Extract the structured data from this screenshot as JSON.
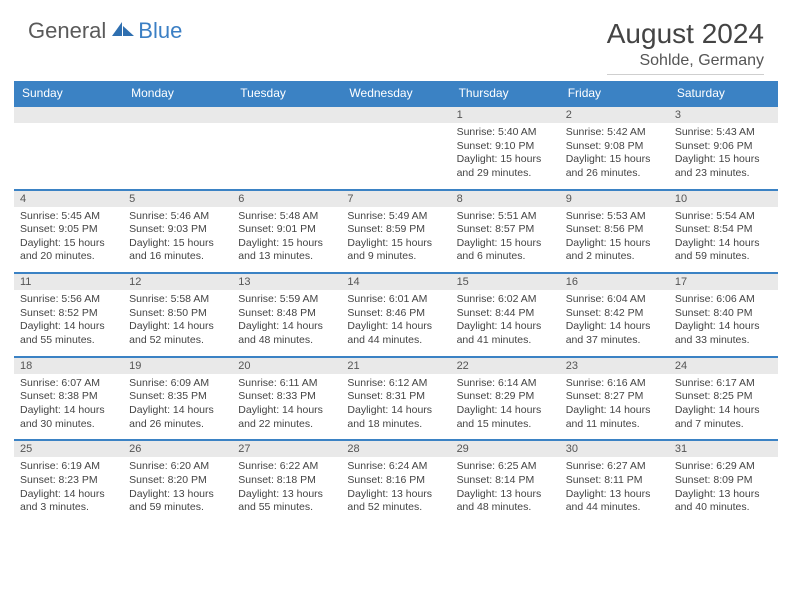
{
  "logo": {
    "general": "General",
    "blue": "Blue"
  },
  "title": "August 2024",
  "location": "Sohlde, Germany",
  "accent_color": "#3b82c4",
  "daynum_bg": "#e9e9e9",
  "weekdays": [
    "Sunday",
    "Monday",
    "Tuesday",
    "Wednesday",
    "Thursday",
    "Friday",
    "Saturday"
  ],
  "weeks": [
    [
      null,
      null,
      null,
      null,
      {
        "n": "1",
        "sr": "Sunrise: 5:40 AM",
        "ss": "Sunset: 9:10 PM",
        "d1": "Daylight: 15 hours",
        "d2": "and 29 minutes."
      },
      {
        "n": "2",
        "sr": "Sunrise: 5:42 AM",
        "ss": "Sunset: 9:08 PM",
        "d1": "Daylight: 15 hours",
        "d2": "and 26 minutes."
      },
      {
        "n": "3",
        "sr": "Sunrise: 5:43 AM",
        "ss": "Sunset: 9:06 PM",
        "d1": "Daylight: 15 hours",
        "d2": "and 23 minutes."
      }
    ],
    [
      {
        "n": "4",
        "sr": "Sunrise: 5:45 AM",
        "ss": "Sunset: 9:05 PM",
        "d1": "Daylight: 15 hours",
        "d2": "and 20 minutes."
      },
      {
        "n": "5",
        "sr": "Sunrise: 5:46 AM",
        "ss": "Sunset: 9:03 PM",
        "d1": "Daylight: 15 hours",
        "d2": "and 16 minutes."
      },
      {
        "n": "6",
        "sr": "Sunrise: 5:48 AM",
        "ss": "Sunset: 9:01 PM",
        "d1": "Daylight: 15 hours",
        "d2": "and 13 minutes."
      },
      {
        "n": "7",
        "sr": "Sunrise: 5:49 AM",
        "ss": "Sunset: 8:59 PM",
        "d1": "Daylight: 15 hours",
        "d2": "and 9 minutes."
      },
      {
        "n": "8",
        "sr": "Sunrise: 5:51 AM",
        "ss": "Sunset: 8:57 PM",
        "d1": "Daylight: 15 hours",
        "d2": "and 6 minutes."
      },
      {
        "n": "9",
        "sr": "Sunrise: 5:53 AM",
        "ss": "Sunset: 8:56 PM",
        "d1": "Daylight: 15 hours",
        "d2": "and 2 minutes."
      },
      {
        "n": "10",
        "sr": "Sunrise: 5:54 AM",
        "ss": "Sunset: 8:54 PM",
        "d1": "Daylight: 14 hours",
        "d2": "and 59 minutes."
      }
    ],
    [
      {
        "n": "11",
        "sr": "Sunrise: 5:56 AM",
        "ss": "Sunset: 8:52 PM",
        "d1": "Daylight: 14 hours",
        "d2": "and 55 minutes."
      },
      {
        "n": "12",
        "sr": "Sunrise: 5:58 AM",
        "ss": "Sunset: 8:50 PM",
        "d1": "Daylight: 14 hours",
        "d2": "and 52 minutes."
      },
      {
        "n": "13",
        "sr": "Sunrise: 5:59 AM",
        "ss": "Sunset: 8:48 PM",
        "d1": "Daylight: 14 hours",
        "d2": "and 48 minutes."
      },
      {
        "n": "14",
        "sr": "Sunrise: 6:01 AM",
        "ss": "Sunset: 8:46 PM",
        "d1": "Daylight: 14 hours",
        "d2": "and 44 minutes."
      },
      {
        "n": "15",
        "sr": "Sunrise: 6:02 AM",
        "ss": "Sunset: 8:44 PM",
        "d1": "Daylight: 14 hours",
        "d2": "and 41 minutes."
      },
      {
        "n": "16",
        "sr": "Sunrise: 6:04 AM",
        "ss": "Sunset: 8:42 PM",
        "d1": "Daylight: 14 hours",
        "d2": "and 37 minutes."
      },
      {
        "n": "17",
        "sr": "Sunrise: 6:06 AM",
        "ss": "Sunset: 8:40 PM",
        "d1": "Daylight: 14 hours",
        "d2": "and 33 minutes."
      }
    ],
    [
      {
        "n": "18",
        "sr": "Sunrise: 6:07 AM",
        "ss": "Sunset: 8:38 PM",
        "d1": "Daylight: 14 hours",
        "d2": "and 30 minutes."
      },
      {
        "n": "19",
        "sr": "Sunrise: 6:09 AM",
        "ss": "Sunset: 8:35 PM",
        "d1": "Daylight: 14 hours",
        "d2": "and 26 minutes."
      },
      {
        "n": "20",
        "sr": "Sunrise: 6:11 AM",
        "ss": "Sunset: 8:33 PM",
        "d1": "Daylight: 14 hours",
        "d2": "and 22 minutes."
      },
      {
        "n": "21",
        "sr": "Sunrise: 6:12 AM",
        "ss": "Sunset: 8:31 PM",
        "d1": "Daylight: 14 hours",
        "d2": "and 18 minutes."
      },
      {
        "n": "22",
        "sr": "Sunrise: 6:14 AM",
        "ss": "Sunset: 8:29 PM",
        "d1": "Daylight: 14 hours",
        "d2": "and 15 minutes."
      },
      {
        "n": "23",
        "sr": "Sunrise: 6:16 AM",
        "ss": "Sunset: 8:27 PM",
        "d1": "Daylight: 14 hours",
        "d2": "and 11 minutes."
      },
      {
        "n": "24",
        "sr": "Sunrise: 6:17 AM",
        "ss": "Sunset: 8:25 PM",
        "d1": "Daylight: 14 hours",
        "d2": "and 7 minutes."
      }
    ],
    [
      {
        "n": "25",
        "sr": "Sunrise: 6:19 AM",
        "ss": "Sunset: 8:23 PM",
        "d1": "Daylight: 14 hours",
        "d2": "and 3 minutes."
      },
      {
        "n": "26",
        "sr": "Sunrise: 6:20 AM",
        "ss": "Sunset: 8:20 PM",
        "d1": "Daylight: 13 hours",
        "d2": "and 59 minutes."
      },
      {
        "n": "27",
        "sr": "Sunrise: 6:22 AM",
        "ss": "Sunset: 8:18 PM",
        "d1": "Daylight: 13 hours",
        "d2": "and 55 minutes."
      },
      {
        "n": "28",
        "sr": "Sunrise: 6:24 AM",
        "ss": "Sunset: 8:16 PM",
        "d1": "Daylight: 13 hours",
        "d2": "and 52 minutes."
      },
      {
        "n": "29",
        "sr": "Sunrise: 6:25 AM",
        "ss": "Sunset: 8:14 PM",
        "d1": "Daylight: 13 hours",
        "d2": "and 48 minutes."
      },
      {
        "n": "30",
        "sr": "Sunrise: 6:27 AM",
        "ss": "Sunset: 8:11 PM",
        "d1": "Daylight: 13 hours",
        "d2": "and 44 minutes."
      },
      {
        "n": "31",
        "sr": "Sunrise: 6:29 AM",
        "ss": "Sunset: 8:09 PM",
        "d1": "Daylight: 13 hours",
        "d2": "and 40 minutes."
      }
    ]
  ]
}
